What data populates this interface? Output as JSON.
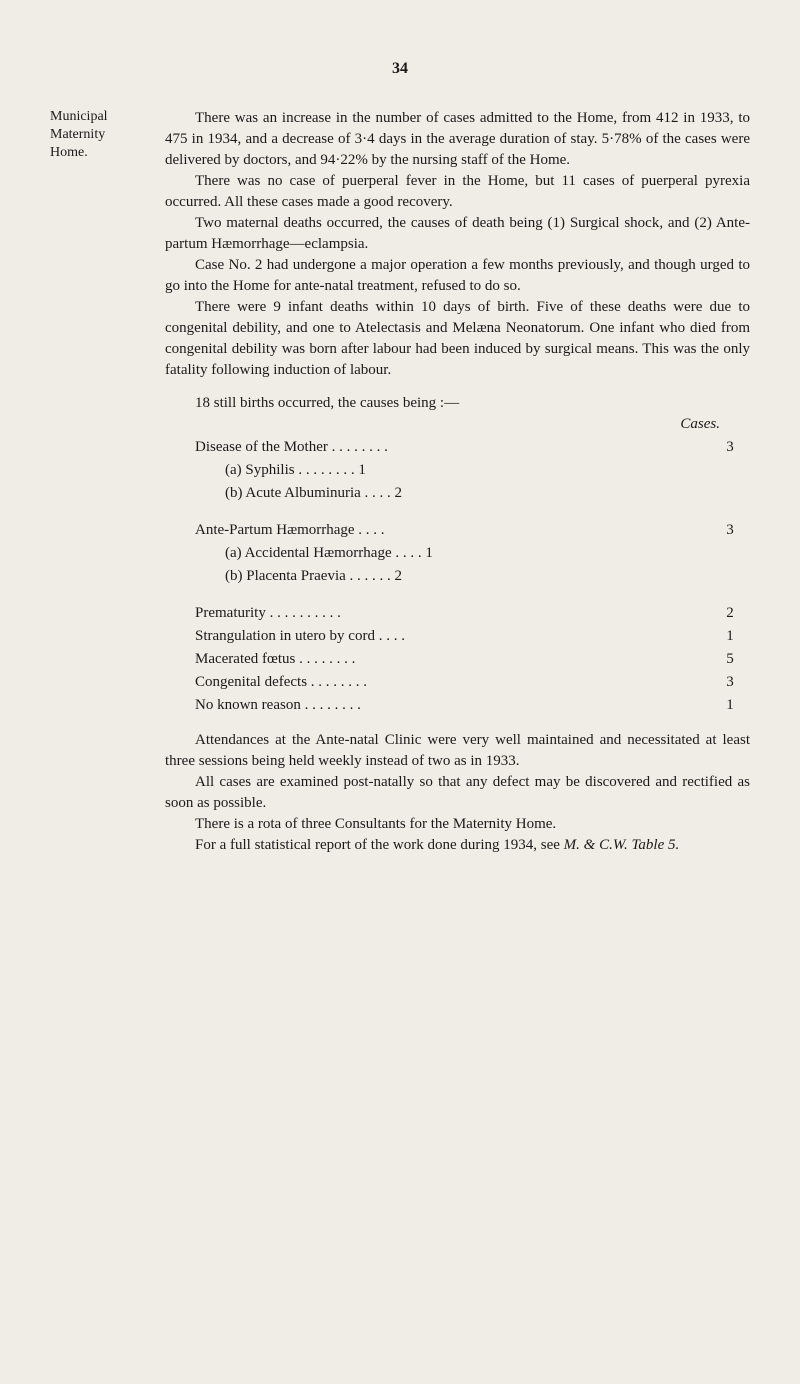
{
  "page_number": "34",
  "margin_note": {
    "line1": "Municipal",
    "line2": "Maternity",
    "line3": "Home."
  },
  "paragraphs": {
    "p1": "There was an increase in the number of cases admitted to the Home, from 412 in 1933, to 475 in 1934, and a decrease of 3·4 days in the average duration of stay. 5·78% of the cases were delivered by doctors, and 94·22% by the nursing staff of the Home.",
    "p2": "There was no case of puerperal fever in the Home, but 11 cases of puerperal pyrexia occurred. All these cases made a good recovery.",
    "p3": "Two maternal deaths occurred, the causes of death being (1) Surgical shock, and (2) Ante-partum Hæmorrhage—eclampsia.",
    "p4": "Case No. 2 had undergone a major operation a few months previously, and though urged to go into the Home for ante-natal treatment, refused to do so.",
    "p5": "There were 9 infant deaths within 10 days of birth. Five of these deaths were due to congenital debility, and one to Atelectasis and Melæna Neonatorum. One infant who died from congenital debility was born after labour had been induced by surgical means. This was the only fatality following induction of labour.",
    "p6": "18 still births occurred, the causes being :—",
    "cases_label": "Cases.",
    "p7": "Attendances at the Ante-natal Clinic were very well maintained and necessitated at least three sessions being held weekly instead of two as in 1933.",
    "p8": "All cases are examined post-natally so that any defect may be discovered and rectified as soon as possible.",
    "p9": "There is a rota of three Consultants for the Maternity Home.",
    "p10_a": "For a full statistical report of the work done during 1934, see ",
    "p10_b": "M. & C.W. Table 5."
  },
  "table": {
    "disease_mother": {
      "label": "Disease of the Mother . .     . .     . .     . .",
      "value": "3"
    },
    "syphilis": {
      "label": "(a)  Syphilis     . .     . .     . .     . .  1",
      "value": ""
    },
    "albuminuria": {
      "label": "(b)  Acute Albuminuria     . .     . .  2",
      "value": ""
    },
    "ante_partum": {
      "label": "Ante-Partum Hæmorrhage          . .     . .",
      "value": "3"
    },
    "accidental": {
      "label": "(a)  Accidental Hæmorrhage  . .     . .  1",
      "value": ""
    },
    "placenta": {
      "label": "(b)  Placenta Praevia  . .     . .     . .  2",
      "value": ""
    },
    "prematurity": {
      "label": "Prematurity   . .     . .     . .     . .     . .",
      "value": "2"
    },
    "strangulation": {
      "label": "Strangulation in utero by cord     . .     . .",
      "value": "1"
    },
    "macerated": {
      "label": "Macerated fœtus     . .     . .     . .     . .",
      "value": "5"
    },
    "congenital": {
      "label": "Congenital defects     . .     . .     . .     . .",
      "value": "3"
    },
    "noknown": {
      "label": "No known reason     . .     . .     . .     . .",
      "value": "1"
    }
  }
}
